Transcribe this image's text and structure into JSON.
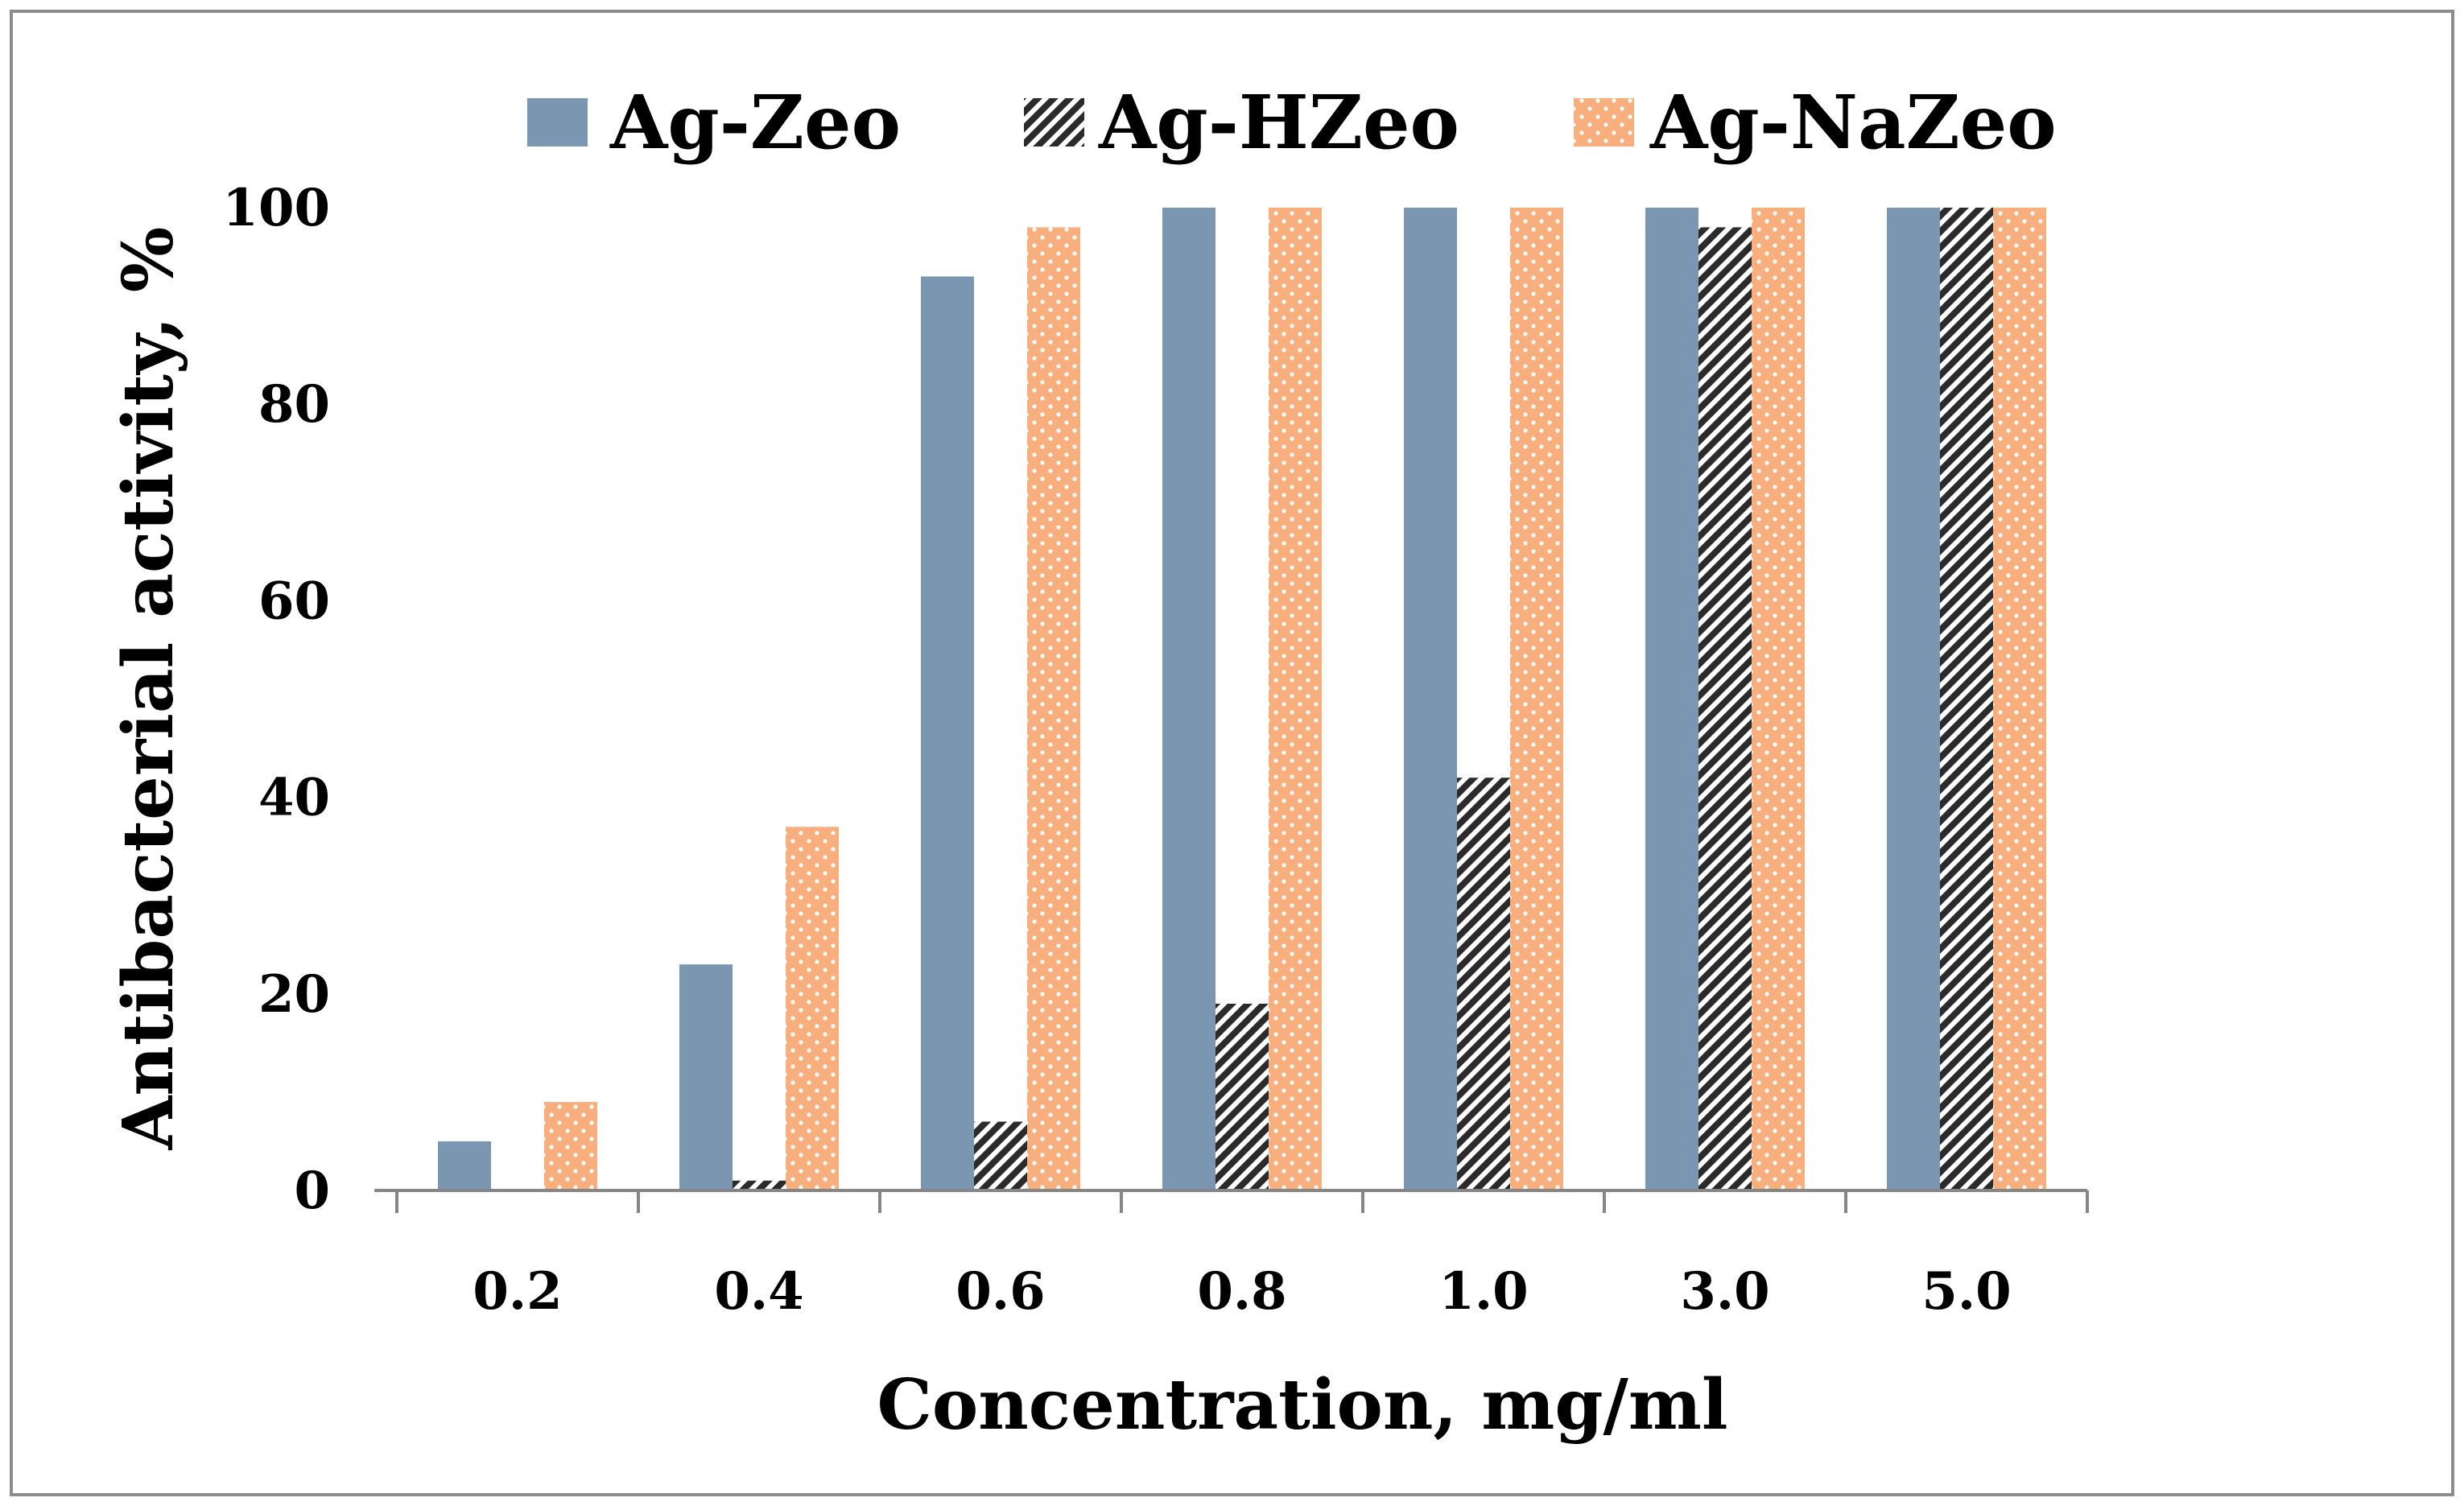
{
  "chart_data": {
    "type": "bar",
    "title": "",
    "xlabel": "Concentration, mg/ml",
    "ylabel": "Antibacterial activity, %",
    "ylim": [
      0,
      100
    ],
    "yticks": [
      0,
      20,
      40,
      60,
      80,
      100
    ],
    "categories": [
      "0.2",
      "0.4",
      "0.6",
      "0.8",
      "1.0",
      "3.0",
      "5.0"
    ],
    "series": [
      {
        "name": "Ag-Zeo",
        "values": [
          5,
          23,
          93,
          100,
          100,
          100,
          100
        ]
      },
      {
        "name": "Ag-HZeo",
        "values": [
          0,
          1,
          7,
          19,
          42,
          98,
          100
        ]
      },
      {
        "name": "Ag-NaZeo",
        "values": [
          9,
          37,
          98,
          100,
          100,
          100,
          100
        ]
      }
    ],
    "legend_position": "top",
    "grid": false
  },
  "colors": {
    "ag_zeo": "#7b96b1",
    "ag_hzeo_dark": "#2b2b2b",
    "ag_hzeo_light": "#ffffff",
    "ag_nazeo": "#f9ae7d",
    "ag_nazeo_dots": "#ffffff",
    "axis": "#868686",
    "frame": "#8c8c8c"
  }
}
